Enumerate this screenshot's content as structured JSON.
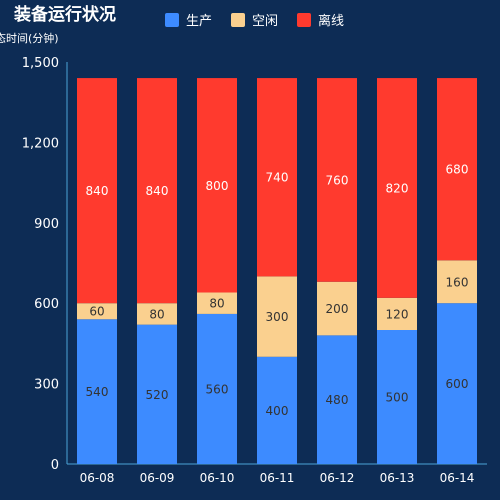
{
  "chart_data": {
    "type": "bar",
    "stacked": true,
    "title": "装备运行状况",
    "ylabel": "状态时间(分钟)",
    "categories": [
      "06-08",
      "06-09",
      "06-10",
      "06-11",
      "06-12",
      "06-13",
      "06-14"
    ],
    "series": [
      {
        "name": "生产",
        "color": "#3d8bff",
        "values": [
          540,
          520,
          560,
          400,
          480,
          500,
          600
        ]
      },
      {
        "name": "空闲",
        "color": "#fad08f",
        "values": [
          60,
          80,
          80,
          300,
          200,
          120,
          160
        ]
      },
      {
        "name": "离线",
        "color": "#ff3a2e",
        "values": [
          840,
          840,
          800,
          740,
          760,
          820,
          680
        ]
      }
    ],
    "yticks": [
      "0",
      "300",
      "600",
      "900",
      "1,200",
      "1,500"
    ],
    "ylim": [
      0,
      1500
    ],
    "grid": false,
    "legend": "top"
  }
}
